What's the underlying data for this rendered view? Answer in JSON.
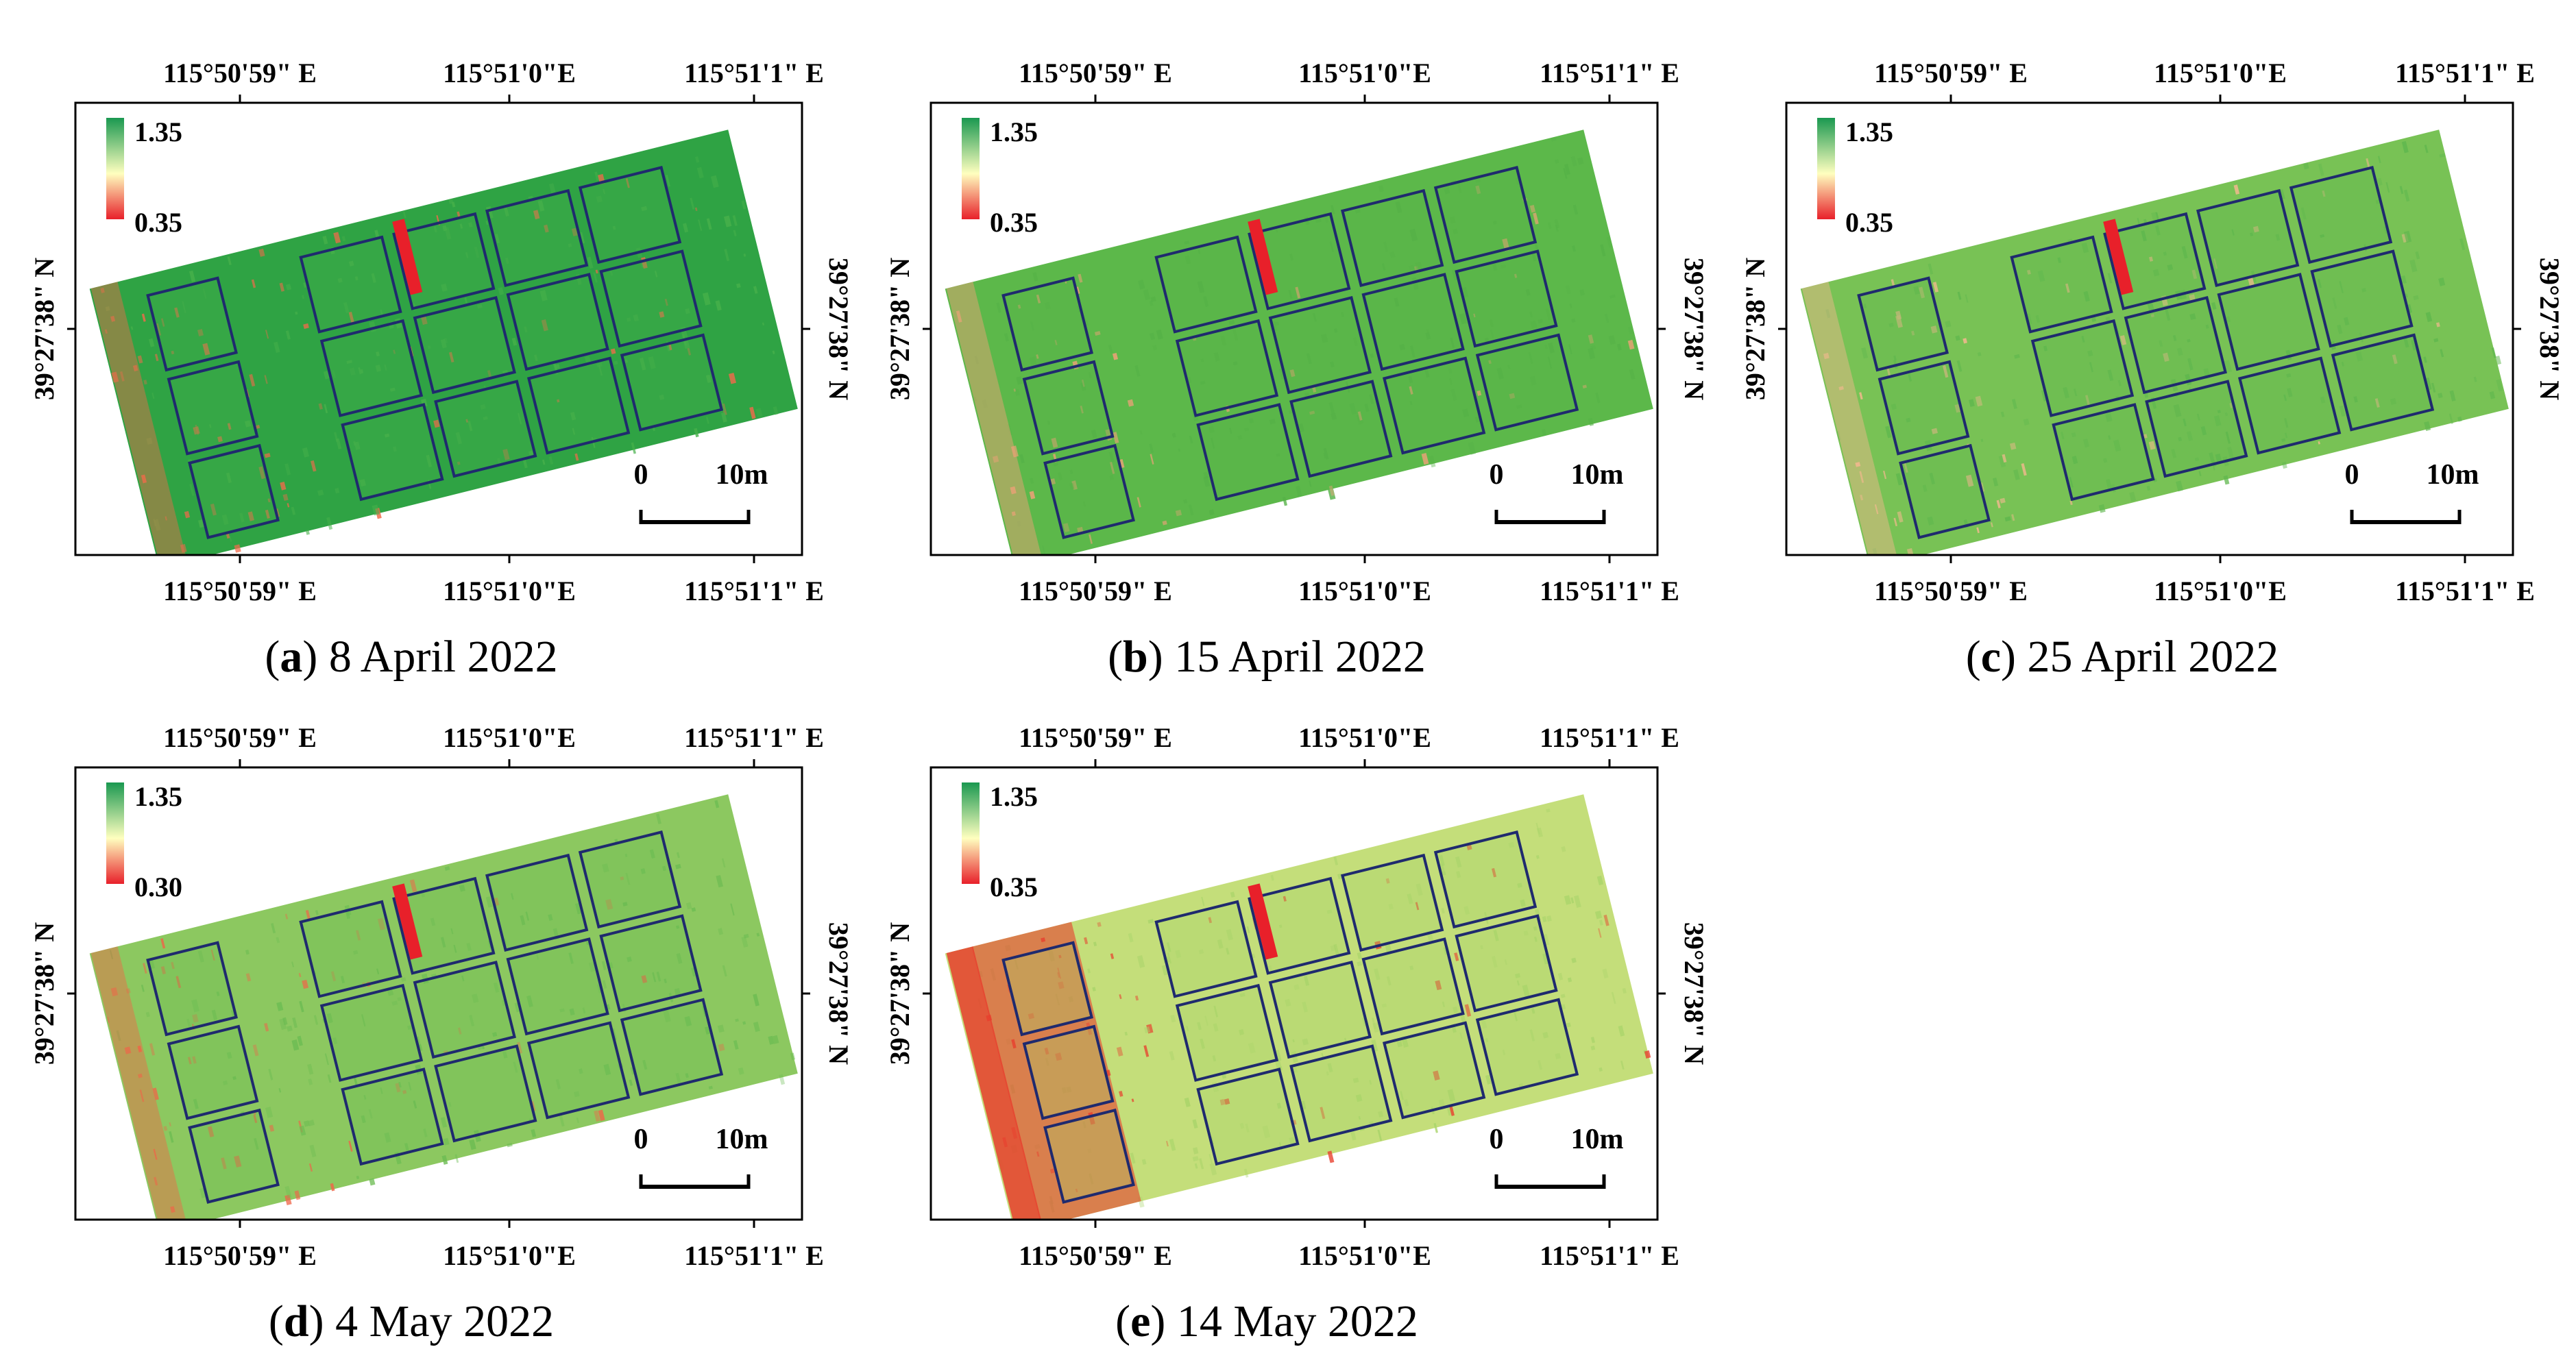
{
  "figure": {
    "panels": [
      {
        "id": "a",
        "letter": "a",
        "date": "8 April 2022",
        "legend": {
          "max": "1.35",
          "min": "0.35"
        },
        "lon_labels": [
          "115°50'59\" E",
          "115°51'0\"E",
          "115°51'1\" E"
        ],
        "lat_label": "39°27'38\" N",
        "scale": {
          "start": "0",
          "end": "10m"
        },
        "field": {
          "base": "#2fa344",
          "soil": "#f06a4a",
          "plot": "#46b04a",
          "colors": [
            "#2fa344",
            "#46b04a",
            "#f06a4a"
          ]
        }
      },
      {
        "id": "b",
        "letter": "b",
        "date": "15 April 2022",
        "legend": {
          "max": "1.35",
          "min": "0.35"
        },
        "lon_labels": [
          "115°50'59\" E",
          "115°51'0\"E",
          "115°51'1\" E"
        ],
        "lat_label": "39°27'38\" N",
        "scale": {
          "start": "0",
          "end": "10m"
        },
        "field": {
          "base": "#5cb84a",
          "soil": "#f6a07a",
          "plot": "#55b247",
          "colors": [
            "#5cb84a",
            "#55b247",
            "#f6a07a"
          ]
        }
      },
      {
        "id": "c",
        "letter": "c",
        "date": "25 April 2022",
        "legend": {
          "max": "1.35",
          "min": "0.35"
        },
        "lon_labels": [
          "115°50'59\" E",
          "115°51'0\"E",
          "115°51'1\" E"
        ],
        "lat_label": "39°27'38\" N",
        "scale": {
          "start": "0",
          "end": "10m"
        },
        "field": {
          "base": "#78c255",
          "soil": "#f7b890",
          "plot": "#5fb74e",
          "colors": [
            "#78c255",
            "#5fb74e",
            "#f7b890"
          ]
        }
      },
      {
        "id": "d",
        "letter": "d",
        "date": "4 May 2022",
        "legend": {
          "max": "1.35",
          "min": "0.30"
        },
        "lon_labels": [
          "115°50'59\" E",
          "115°51'0\"E",
          "115°51'1\" E"
        ],
        "lat_label": "39°27'38\" N",
        "scale": {
          "start": "0",
          "end": "10m"
        },
        "field": {
          "base": "#8cc860",
          "soil": "#ef6548",
          "plot": "#6cbc52",
          "colors": [
            "#8cc860",
            "#6cbc52",
            "#ef6548"
          ]
        }
      },
      {
        "id": "e",
        "letter": "e",
        "date": "14 May 2022",
        "legend": {
          "max": "1.35",
          "min": "0.35"
        },
        "lon_labels": [
          "115°50'59\" E",
          "115°51'0\"E",
          "115°51'1\" E"
        ],
        "lat_label": "39°27'38\" N",
        "scale": {
          "start": "0",
          "end": "10m"
        },
        "field": {
          "base": "#c4de7a",
          "soil": "#e8402e",
          "plot": "#a9d46a",
          "colors": [
            "#c4de7a",
            "#a9d46a",
            "#e8402e"
          ]
        }
      }
    ],
    "colors": {
      "legend_top": "#1a9850",
      "legend_mid": "#ffffbf",
      "legend_bottom": "#e8202a",
      "plot_outline": "#1f2a6e",
      "frame": "#000000"
    }
  }
}
